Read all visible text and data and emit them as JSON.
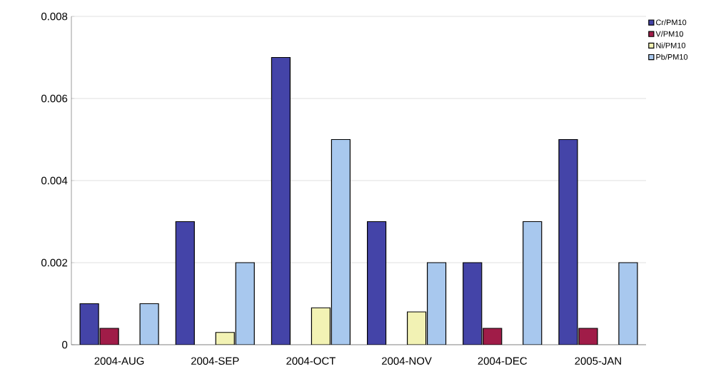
{
  "chart_data": {
    "type": "bar",
    "categories": [
      "2004-AUG",
      "2004-SEP",
      "2004-OCT",
      "2004-NOV",
      "2004-DEC",
      "2005-JAN"
    ],
    "series": [
      {
        "name": "Cr/PM10",
        "color": "#4444a8",
        "values": [
          0.001,
          0.003,
          0.007,
          0.003,
          0.002,
          0.005
        ]
      },
      {
        "name": "V/PM10",
        "color": "#a01c48",
        "values": [
          0.0004,
          null,
          null,
          null,
          0.0004,
          0.0004
        ]
      },
      {
        "name": "Ni/PM10",
        "color": "#f2f2b4",
        "values": [
          null,
          0.0003,
          0.0009,
          0.0008,
          null,
          null
        ]
      },
      {
        "name": "Pb/PM10",
        "color": "#a8c8ee",
        "values": [
          0.001,
          0.002,
          0.005,
          0.002,
          0.003,
          0.002
        ]
      }
    ],
    "ylim": [
      0,
      0.008
    ],
    "yticks": [
      0,
      0.002,
      0.004,
      0.006,
      0.008
    ],
    "grid": "y",
    "legend": "top right"
  }
}
